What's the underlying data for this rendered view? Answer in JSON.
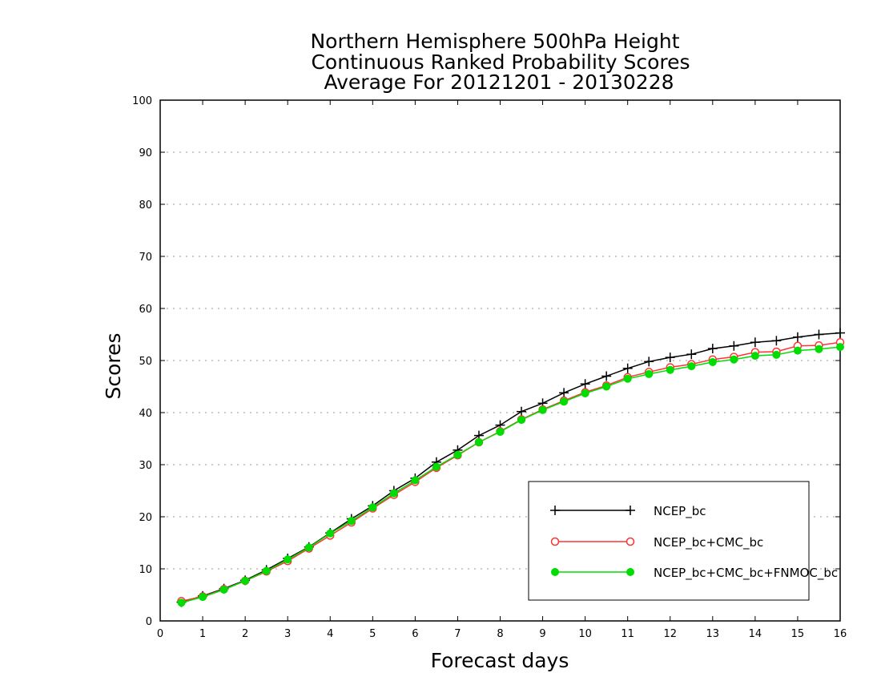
{
  "chart_data": {
    "type": "line",
    "title": [
      "Northern Hemisphere 500hPa Height",
      "Continuous Ranked Probability Scores",
      "Average For 20121201 - 20130228"
    ],
    "xlabel": "Forecast days",
    "ylabel": "Scores",
    "xlim": [
      0,
      16
    ],
    "ylim": [
      0,
      100
    ],
    "xticks": [
      "0",
      "1",
      "2",
      "3",
      "4",
      "5",
      "6",
      "7",
      "8",
      "9",
      "10",
      "11",
      "12",
      "13",
      "14",
      "15",
      "16"
    ],
    "yticks": [
      "0",
      "10",
      "20",
      "30",
      "40",
      "50",
      "60",
      "70",
      "80",
      "90",
      "100"
    ],
    "grid": "horizontal dotted",
    "legend_position": "bottom-right",
    "x": [
      0.5,
      1,
      1.5,
      2,
      2.5,
      3,
      3.5,
      4,
      4.5,
      5,
      5.5,
      6,
      6.5,
      7,
      7.5,
      8,
      8.5,
      9,
      9.5,
      10,
      10.5,
      11,
      11.5,
      12,
      12.5,
      13,
      13.5,
      14,
      14.5,
      15,
      15.5,
      16
    ],
    "series": [
      {
        "name": "NCEP_bc",
        "color": "#000000",
        "marker": "plus",
        "values": [
          3.6,
          4.8,
          6.2,
          7.8,
          9.8,
          12.0,
          14.2,
          16.9,
          19.6,
          22.1,
          25.0,
          27.4,
          30.5,
          32.8,
          35.6,
          37.6,
          40.2,
          41.8,
          43.8,
          45.5,
          47.0,
          48.5,
          49.8,
          50.6,
          51.2,
          52.3,
          52.8,
          53.5,
          53.8,
          54.5,
          55.0,
          55.3
        ]
      },
      {
        "name": "NCEP_bc+CMC_bc",
        "color": "#ff3333",
        "marker": "open-circle",
        "values": [
          3.8,
          4.7,
          6.1,
          7.7,
          9.5,
          11.5,
          13.9,
          16.4,
          18.9,
          21.6,
          24.2,
          26.7,
          29.4,
          31.8,
          34.3,
          36.4,
          38.7,
          40.6,
          42.3,
          43.9,
          45.2,
          46.8,
          47.8,
          48.7,
          49.3,
          50.2,
          50.7,
          51.6,
          51.7,
          52.8,
          52.9,
          53.5
        ]
      },
      {
        "name": "NCEP_bc+CMC_bc+FNMOC_bc",
        "color": "#00dd00",
        "marker": "filled-circle",
        "values": [
          3.5,
          4.6,
          6.0,
          7.7,
          9.6,
          11.8,
          14.1,
          16.8,
          19.2,
          21.8,
          24.5,
          27.0,
          29.6,
          31.9,
          34.3,
          36.3,
          38.6,
          40.5,
          42.1,
          43.7,
          45.0,
          46.5,
          47.4,
          48.2,
          48.9,
          49.7,
          50.2,
          50.9,
          51.1,
          51.9,
          52.2,
          52.6
        ]
      }
    ]
  }
}
